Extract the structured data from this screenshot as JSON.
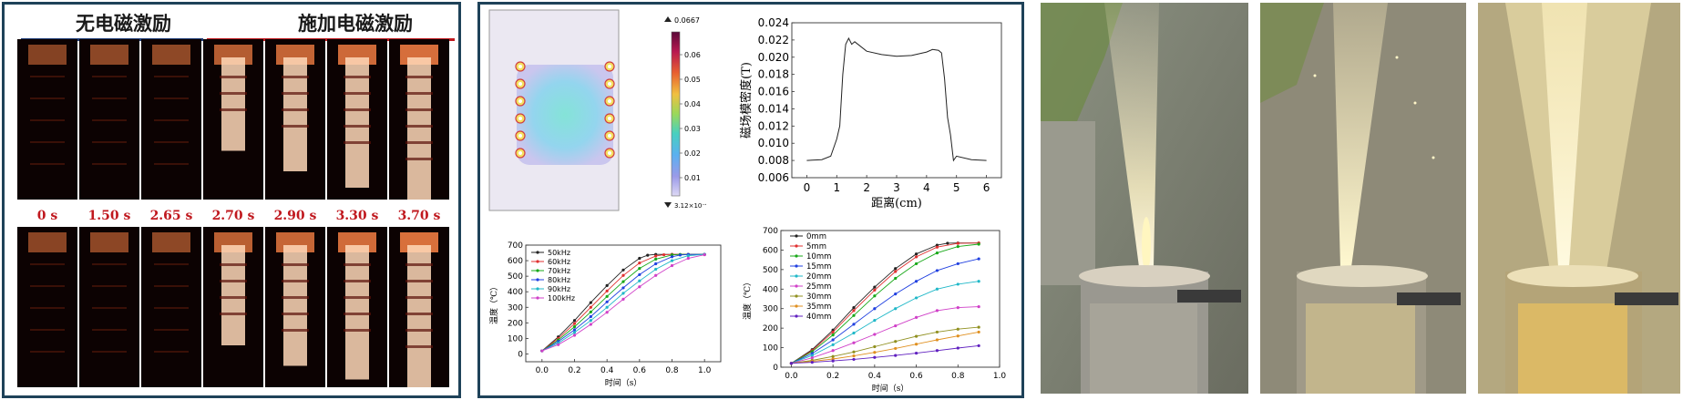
{
  "panel_a": {
    "header_left": "无电磁激励",
    "header_right": "施加电磁激励",
    "time_labels": [
      "0 s",
      "1.50 s",
      "2.65 s",
      "2.70 s",
      "2.90 s",
      "3.30 s",
      "3.70 s"
    ],
    "flame_levels_top": [
      0.0,
      0.1,
      0.12,
      0.55,
      0.7,
      0.82,
      0.92
    ],
    "flame_levels_bottom": [
      0.05,
      0.08,
      0.12,
      0.6,
      0.75,
      0.85,
      0.95
    ],
    "colors": {
      "header_left_rule": "#1e3c78",
      "header_right_rule": "#c0181e",
      "time_label": "#c0181e",
      "border": "#1e4259"
    }
  },
  "panel_b": {
    "contour": {
      "max_label": "0.0667",
      "min_label": "3.12×10⁻⁴",
      "colorbar_ticks": [
        "0.06",
        "0.05",
        "0.04",
        "0.03",
        "0.02",
        "0.01"
      ]
    },
    "colors": {
      "series_base": "#222222"
    }
  },
  "chart_data": [
    {
      "type": "line",
      "id": "field-profile",
      "xlabel": "距离(cm)",
      "ylabel": "磁场模密度(T)",
      "xlim": [
        -0.5,
        6.5
      ],
      "ylim": [
        0.006,
        0.024
      ],
      "xticks": [
        "0",
        "1",
        "2",
        "3",
        "4",
        "5",
        "6"
      ],
      "yticks": [
        "0.006",
        "0.008",
        "0.010",
        "0.012",
        "0.014",
        "0.016",
        "0.018",
        "0.020",
        "0.022",
        "0.024"
      ],
      "x": [
        0,
        0.5,
        0.8,
        1.0,
        1.1,
        1.2,
        1.3,
        1.4,
        1.5,
        1.6,
        2.0,
        2.5,
        3.0,
        3.5,
        4.0,
        4.2,
        4.4,
        4.5,
        4.6,
        4.7,
        4.8,
        4.9,
        5.0,
        5.5,
        6.0
      ],
      "y": [
        0.008,
        0.0081,
        0.0085,
        0.0105,
        0.012,
        0.018,
        0.0215,
        0.0222,
        0.0215,
        0.0218,
        0.0207,
        0.0203,
        0.0201,
        0.0202,
        0.0206,
        0.0209,
        0.0208,
        0.0205,
        0.0175,
        0.013,
        0.011,
        0.008,
        0.0085,
        0.0081,
        0.008
      ]
    },
    {
      "type": "line",
      "id": "freq-heating",
      "xlabel": "时间（s）",
      "ylabel": "温度（℃）",
      "xlim": [
        -0.1,
        1.1
      ],
      "ylim": [
        -50,
        700
      ],
      "xticks": [
        "0.0",
        "0.2",
        "0.4",
        "0.6",
        "0.8",
        "1.0"
      ],
      "yticks": [
        "0",
        "100",
        "200",
        "300",
        "400",
        "500",
        "600",
        "700"
      ],
      "series": [
        {
          "name": "50kHz",
          "color": "#222222",
          "x": [
            0,
            0.1,
            0.2,
            0.3,
            0.4,
            0.5,
            0.6,
            0.65,
            0.7,
            0.8,
            0.9,
            1.0
          ],
          "y": [
            20,
            110,
            215,
            330,
            440,
            540,
            615,
            635,
            640,
            640,
            640,
            640
          ]
        },
        {
          "name": "60kHz",
          "color": "#e03030",
          "x": [
            0,
            0.1,
            0.2,
            0.3,
            0.4,
            0.5,
            0.6,
            0.7,
            0.75,
            0.8,
            0.9,
            1.0
          ],
          "y": [
            20,
            100,
            195,
            300,
            405,
            505,
            585,
            630,
            638,
            640,
            640,
            640
          ]
        },
        {
          "name": "70kHz",
          "color": "#18a818",
          "x": [
            0,
            0.1,
            0.2,
            0.3,
            0.4,
            0.5,
            0.6,
            0.7,
            0.8,
            0.85,
            0.9,
            1.0
          ],
          "y": [
            20,
            90,
            175,
            270,
            370,
            465,
            550,
            610,
            637,
            640,
            640,
            640
          ]
        },
        {
          "name": "80kHz",
          "color": "#2040e0",
          "x": [
            0,
            0.1,
            0.2,
            0.3,
            0.4,
            0.5,
            0.6,
            0.7,
            0.8,
            0.85,
            0.9,
            1.0
          ],
          "y": [
            20,
            80,
            155,
            240,
            335,
            425,
            510,
            580,
            625,
            636,
            640,
            640
          ]
        },
        {
          "name": "90kHz",
          "color": "#20b8c8",
          "x": [
            0,
            0.1,
            0.2,
            0.3,
            0.4,
            0.5,
            0.6,
            0.7,
            0.8,
            0.9,
            1.0
          ],
          "y": [
            20,
            70,
            138,
            215,
            300,
            390,
            470,
            545,
            600,
            632,
            640
          ]
        },
        {
          "name": "100kHz",
          "color": "#d040c8",
          "x": [
            0,
            0.1,
            0.2,
            0.3,
            0.4,
            0.5,
            0.6,
            0.7,
            0.8,
            0.9,
            1.0
          ],
          "y": [
            20,
            60,
            120,
            190,
            268,
            352,
            432,
            505,
            568,
            615,
            638
          ]
        }
      ]
    },
    {
      "type": "line",
      "id": "depth-heating",
      "xlabel": "时间（s）",
      "ylabel": "温度（℃）",
      "xlim": [
        -0.05,
        1.0
      ],
      "ylim": [
        0,
        700
      ],
      "xticks": [
        "0.0",
        "0.2",
        "0.4",
        "0.6",
        "0.8",
        "1.0"
      ],
      "yticks": [
        "0",
        "100",
        "200",
        "300",
        "400",
        "500",
        "600",
        "700"
      ],
      "series": [
        {
          "name": "0mm",
          "color": "#222222",
          "x": [
            0,
            0.1,
            0.2,
            0.3,
            0.4,
            0.5,
            0.6,
            0.7,
            0.75,
            0.8,
            0.9
          ],
          "y": [
            20,
            90,
            190,
            305,
            410,
            505,
            580,
            625,
            635,
            636,
            636
          ]
        },
        {
          "name": "5mm",
          "color": "#e03030",
          "x": [
            0,
            0.1,
            0.2,
            0.3,
            0.4,
            0.5,
            0.6,
            0.7,
            0.8,
            0.9
          ],
          "y": [
            20,
            85,
            180,
            290,
            395,
            490,
            565,
            615,
            634,
            636
          ]
        },
        {
          "name": "10mm",
          "color": "#18a818",
          "x": [
            0,
            0.1,
            0.2,
            0.3,
            0.4,
            0.5,
            0.6,
            0.7,
            0.8,
            0.9
          ],
          "y": [
            20,
            80,
            165,
            265,
            365,
            455,
            530,
            585,
            618,
            630
          ]
        },
        {
          "name": "15mm",
          "color": "#2040e0",
          "x": [
            0,
            0.1,
            0.2,
            0.3,
            0.4,
            0.5,
            0.6,
            0.7,
            0.8,
            0.9
          ],
          "y": [
            20,
            70,
            140,
            220,
            300,
            375,
            440,
            495,
            530,
            555
          ]
        },
        {
          "name": "20mm",
          "color": "#20b8c8",
          "x": [
            0,
            0.1,
            0.2,
            0.3,
            0.4,
            0.5,
            0.6,
            0.7,
            0.8,
            0.9
          ],
          "y": [
            20,
            60,
            115,
            175,
            240,
            300,
            355,
            400,
            425,
            440
          ]
        },
        {
          "name": "25mm",
          "color": "#d040c8",
          "x": [
            0,
            0.1,
            0.2,
            0.3,
            0.4,
            0.5,
            0.6,
            0.7,
            0.8,
            0.9
          ],
          "y": [
            20,
            48,
            85,
            125,
            168,
            212,
            255,
            290,
            305,
            310
          ]
        },
        {
          "name": "30mm",
          "color": "#909020",
          "x": [
            0,
            0.1,
            0.2,
            0.3,
            0.4,
            0.5,
            0.6,
            0.7,
            0.8,
            0.9
          ],
          "y": [
            20,
            35,
            55,
            78,
            105,
            132,
            158,
            180,
            195,
            205
          ]
        },
        {
          "name": "35mm",
          "color": "#e09020",
          "x": [
            0,
            0.1,
            0.2,
            0.3,
            0.4,
            0.5,
            0.6,
            0.7,
            0.8,
            0.9
          ],
          "y": [
            20,
            30,
            42,
            58,
            76,
            96,
            118,
            140,
            160,
            180
          ]
        },
        {
          "name": "40mm",
          "color": "#6020c0",
          "x": [
            0,
            0.1,
            0.2,
            0.3,
            0.4,
            0.5,
            0.6,
            0.7,
            0.8,
            0.9
          ],
          "y": [
            20,
            25,
            32,
            40,
            50,
            60,
            72,
            85,
            98,
            110
          ]
        }
      ]
    }
  ]
}
